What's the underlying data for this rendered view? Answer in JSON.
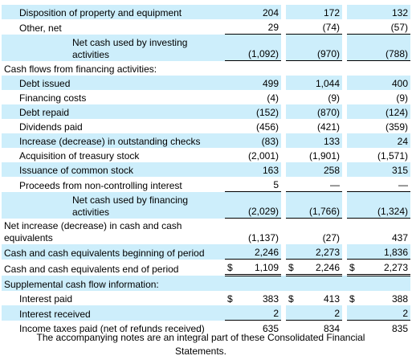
{
  "rows": [
    {
      "label": "Disposition of property and equipment",
      "v": [
        "204",
        "172",
        "132"
      ]
    },
    {
      "label": "Other, net",
      "v": [
        "29",
        "(74)",
        "(57)"
      ]
    },
    {
      "label": "Net cash used by investing activities",
      "v": [
        "(1,092)",
        "(970)",
        "(788)"
      ]
    },
    {
      "label": "Cash flows from financing activities:"
    },
    {
      "label": "Debt issued",
      "v": [
        "499",
        "1,044",
        "400"
      ]
    },
    {
      "label": "Financing costs",
      "v": [
        "(4)",
        "(9)",
        "(9)"
      ]
    },
    {
      "label": "Debt repaid",
      "v": [
        "(152)",
        "(870)",
        "(124)"
      ]
    },
    {
      "label": "Dividends paid",
      "v": [
        "(456)",
        "(421)",
        "(359)"
      ]
    },
    {
      "label": "Increase (decrease) in outstanding checks",
      "v": [
        "(83)",
        "133",
        "24"
      ]
    },
    {
      "label": "Acquisition of treasury stock",
      "v": [
        "(2,001)",
        "(1,901)",
        "(1,571)"
      ]
    },
    {
      "label": "Issuance of common stock",
      "v": [
        "163",
        "258",
        "315"
      ]
    },
    {
      "label": "Proceeds from non-controlling interest",
      "v": [
        "5",
        "—",
        "—"
      ]
    },
    {
      "label": "Net cash used by financing activities",
      "v": [
        "(2,029)",
        "(1,766)",
        "(1,324)"
      ]
    },
    {
      "label": "Net increase (decrease) in cash and cash equivalents",
      "v": [
        "(1,137)",
        "(27)",
        "437"
      ]
    },
    {
      "label": "Cash and cash equivalents beginning of period",
      "v": [
        "2,246",
        "2,273",
        "1,836"
      ]
    },
    {
      "label": "Cash and cash equivalents end of period",
      "v": [
        "1,109",
        "2,246",
        "2,273"
      ]
    },
    {
      "label": "Supplemental cash flow information:"
    },
    {
      "label": "Interest paid",
      "v": [
        "383",
        "413",
        "388"
      ]
    },
    {
      "label": "Interest received",
      "v": [
        "2",
        "2",
        "2"
      ]
    },
    {
      "label": "Income taxes paid (net of refunds received)",
      "v": [
        "635",
        "834",
        "835"
      ]
    }
  ],
  "currency_symbol": "$",
  "footnote": "The accompanying notes are an integral part of these Consolidated Financial Statements."
}
